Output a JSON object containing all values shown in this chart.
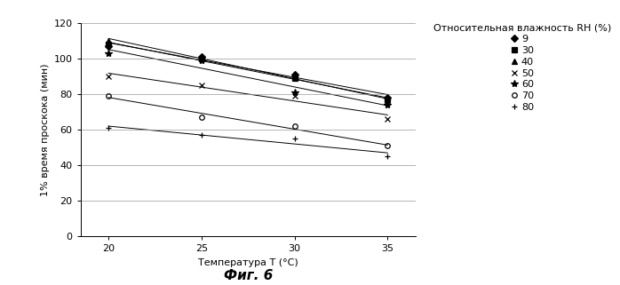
{
  "title_legend": "Относительная влажность RH (%)",
  "xlabel": "Температура T (°C)",
  "ylabel": "1% время проскока (мин)",
  "fig_label": "Фиг. 6",
  "x_ticks": [
    20,
    25,
    30,
    35
  ],
  "xlim": [
    18.5,
    36.5
  ],
  "ylim": [
    0,
    120
  ],
  "y_ticks": [
    0,
    20,
    40,
    60,
    80,
    100,
    120
  ],
  "series": [
    {
      "label": "9",
      "marker": "D",
      "markersize": 4,
      "color": "black",
      "fillstyle": "full",
      "data": [
        [
          20,
          107
        ],
        [
          25,
          101
        ],
        [
          30,
          91
        ],
        [
          35,
          78
        ]
      ]
    },
    {
      "label": "30",
      "marker": "s",
      "markersize": 4,
      "color": "black",
      "fillstyle": "full",
      "data": [
        [
          20,
          108
        ],
        [
          25,
          100
        ],
        [
          30,
          89
        ],
        [
          35,
          77
        ]
      ]
    },
    {
      "label": "40",
      "marker": "^",
      "markersize": 5,
      "color": "black",
      "fillstyle": "full",
      "data": [
        [
          20,
          110
        ],
        [
          25,
          101
        ],
        [
          30,
          90
        ],
        [
          35,
          76
        ]
      ]
    },
    {
      "label": "50",
      "marker": "x",
      "markersize": 5,
      "color": "black",
      "fillstyle": "full",
      "data": [
        [
          20,
          90
        ],
        [
          25,
          85
        ],
        [
          30,
          79
        ],
        [
          35,
          66
        ]
      ]
    },
    {
      "label": "60",
      "marker": "*",
      "markersize": 6,
      "color": "black",
      "fillstyle": "full",
      "data": [
        [
          20,
          103
        ],
        [
          25,
          99
        ],
        [
          30,
          81
        ],
        [
          35,
          74
        ]
      ]
    },
    {
      "label": "70",
      "marker": "o",
      "markersize": 4,
      "color": "black",
      "fillstyle": "none",
      "data": [
        [
          20,
          79
        ],
        [
          25,
          67
        ],
        [
          30,
          62
        ],
        [
          35,
          51
        ]
      ]
    },
    {
      "label": "80",
      "marker": "+",
      "markersize": 5,
      "color": "black",
      "fillstyle": "full",
      "data": [
        [
          20,
          61
        ],
        [
          25,
          57
        ],
        [
          30,
          55
        ],
        [
          35,
          45
        ]
      ]
    }
  ],
  "background_color": "white",
  "grid_color": "#999999",
  "linewidth": 0.7
}
